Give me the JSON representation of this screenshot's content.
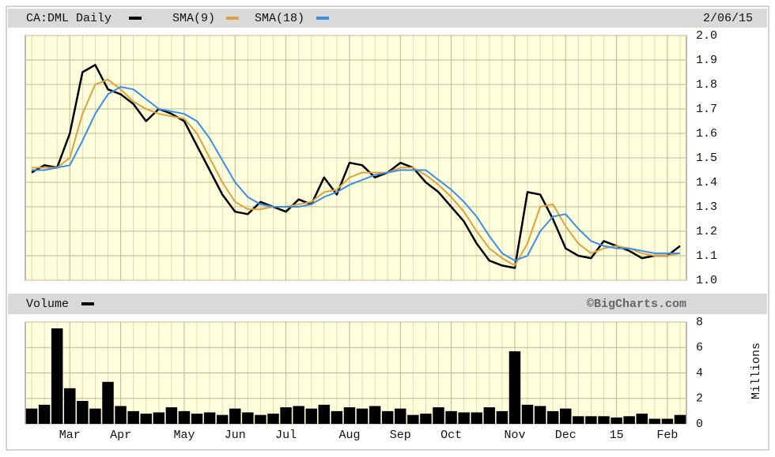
{
  "chart_data": [
    {
      "type": "line",
      "subtitle": "2/06/15",
      "series": [
        {
          "name": "CA:DML Daily",
          "color": "#000000",
          "values": [
            1.44,
            1.47,
            1.46,
            1.6,
            1.85,
            1.88,
            1.78,
            1.76,
            1.72,
            1.65,
            1.7,
            1.68,
            1.65,
            1.55,
            1.45,
            1.35,
            1.28,
            1.27,
            1.32,
            1.3,
            1.28,
            1.33,
            1.31,
            1.42,
            1.35,
            1.48,
            1.47,
            1.42,
            1.44,
            1.48,
            1.46,
            1.4,
            1.36,
            1.3,
            1.24,
            1.15,
            1.08,
            1.06,
            1.05,
            1.36,
            1.35,
            1.25,
            1.13,
            1.1,
            1.09,
            1.16,
            1.14,
            1.12,
            1.09,
            1.1,
            1.1,
            1.14
          ]
        },
        {
          "name": "SMA(9)",
          "color": "#e0a040",
          "values": [
            1.46,
            1.46,
            1.46,
            1.5,
            1.68,
            1.8,
            1.82,
            1.78,
            1.73,
            1.7,
            1.68,
            1.67,
            1.66,
            1.6,
            1.5,
            1.4,
            1.32,
            1.29,
            1.29,
            1.3,
            1.3,
            1.31,
            1.32,
            1.36,
            1.37,
            1.42,
            1.44,
            1.44,
            1.44,
            1.46,
            1.46,
            1.43,
            1.39,
            1.34,
            1.28,
            1.2,
            1.13,
            1.09,
            1.06,
            1.15,
            1.3,
            1.31,
            1.22,
            1.15,
            1.11,
            1.13,
            1.14,
            1.13,
            1.11,
            1.1,
            1.1,
            1.11
          ]
        },
        {
          "name": "SMA(18)",
          "color": "#3a8ee8",
          "values": [
            1.45,
            1.45,
            1.46,
            1.47,
            1.57,
            1.68,
            1.76,
            1.79,
            1.78,
            1.74,
            1.7,
            1.69,
            1.68,
            1.65,
            1.58,
            1.49,
            1.4,
            1.34,
            1.31,
            1.3,
            1.3,
            1.3,
            1.31,
            1.34,
            1.36,
            1.39,
            1.41,
            1.43,
            1.44,
            1.45,
            1.45,
            1.45,
            1.41,
            1.37,
            1.32,
            1.26,
            1.18,
            1.11,
            1.08,
            1.1,
            1.2,
            1.26,
            1.27,
            1.21,
            1.16,
            1.14,
            1.13,
            1.13,
            1.12,
            1.11,
            1.11,
            1.11
          ]
        }
      ],
      "ylim": [
        1,
        2
      ],
      "yticks": [
        {
          "value": 1,
          "label": "1.0"
        },
        1.1,
        1.2,
        1.3,
        1.4,
        1.5,
        1.6,
        1.7,
        1.8,
        1.9,
        {
          "value": 2,
          "label": "2.0"
        }
      ],
      "grid": true
    },
    {
      "type": "bar",
      "annotation": "©BigCharts.com",
      "y_label": "Millions",
      "categories": [
        null,
        null,
        null,
        "Mar",
        null,
        null,
        null,
        "Apr",
        null,
        null,
        null,
        null,
        "May",
        null,
        null,
        null,
        "Jun",
        null,
        null,
        null,
        "Jul",
        null,
        null,
        null,
        null,
        "Aug",
        null,
        null,
        null,
        "Sep",
        null,
        null,
        null,
        "Oct",
        null,
        null,
        null,
        null,
        "Nov",
        null,
        null,
        null,
        "Dec",
        null,
        null,
        null,
        "15",
        null,
        null,
        null,
        "Feb",
        null
      ],
      "series": [
        {
          "name": "Volume",
          "color": "#000000",
          "values": [
            1.2,
            1.5,
            7.5,
            2.8,
            1.8,
            1.2,
            3.3,
            1.4,
            1.0,
            0.8,
            0.9,
            1.3,
            1.0,
            0.8,
            0.9,
            0.7,
            1.2,
            0.9,
            0.7,
            0.8,
            1.3,
            1.4,
            1.2,
            1.5,
            1.0,
            1.3,
            1.2,
            1.4,
            1.0,
            1.2,
            0.7,
            0.8,
            1.3,
            1.0,
            0.9,
            0.9,
            1.3,
            1.0,
            5.7,
            1.5,
            1.4,
            1.0,
            1.2,
            0.6,
            0.6,
            0.6,
            0.5,
            0.6,
            0.8,
            0.4,
            0.4,
            0.7
          ]
        }
      ],
      "ylim": [
        0,
        8
      ],
      "yticks": [
        0,
        2,
        4,
        6,
        8
      ],
      "grid": true
    }
  ]
}
